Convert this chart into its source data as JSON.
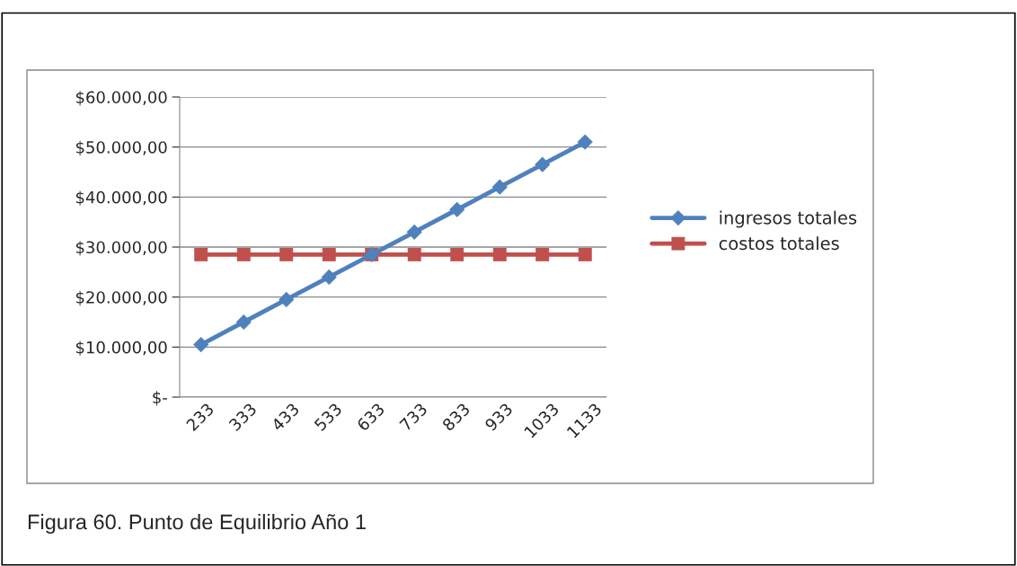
{
  "chart_data": {
    "type": "line",
    "categories": [
      "233",
      "333",
      "433",
      "533",
      "633",
      "733",
      "833",
      "933",
      "1033",
      "1133"
    ],
    "series": [
      {
        "name": "ingresos totales",
        "color": "#4f81bd",
        "marker": "diamond",
        "values": [
          10500,
          15000,
          19500,
          24000,
          28500,
          33000,
          37500,
          42000,
          46500,
          51000
        ]
      },
      {
        "name": "costos totales",
        "color": "#c0504d",
        "marker": "square",
        "values": [
          28500,
          28500,
          28500,
          28500,
          28500,
          28500,
          28500,
          28500,
          28500,
          28500
        ]
      }
    ],
    "ylim": [
      0,
      60000
    ],
    "yticks": [
      {
        "value": 0,
        "label": "$-"
      },
      {
        "value": 10000,
        "label": "$10.000,00"
      },
      {
        "value": 20000,
        "label": "$20.000,00"
      },
      {
        "value": 30000,
        "label": "$30.000,00"
      },
      {
        "value": 40000,
        "label": "$40.000,00"
      },
      {
        "value": 50000,
        "label": "$50.000,00"
      },
      {
        "value": 60000,
        "label": "$60.000,00"
      }
    ],
    "grid": "y",
    "legend": "right",
    "line_style": "solid",
    "annotations": [
      "Figura 60. Punto de Equilibrio Año 1"
    ]
  }
}
